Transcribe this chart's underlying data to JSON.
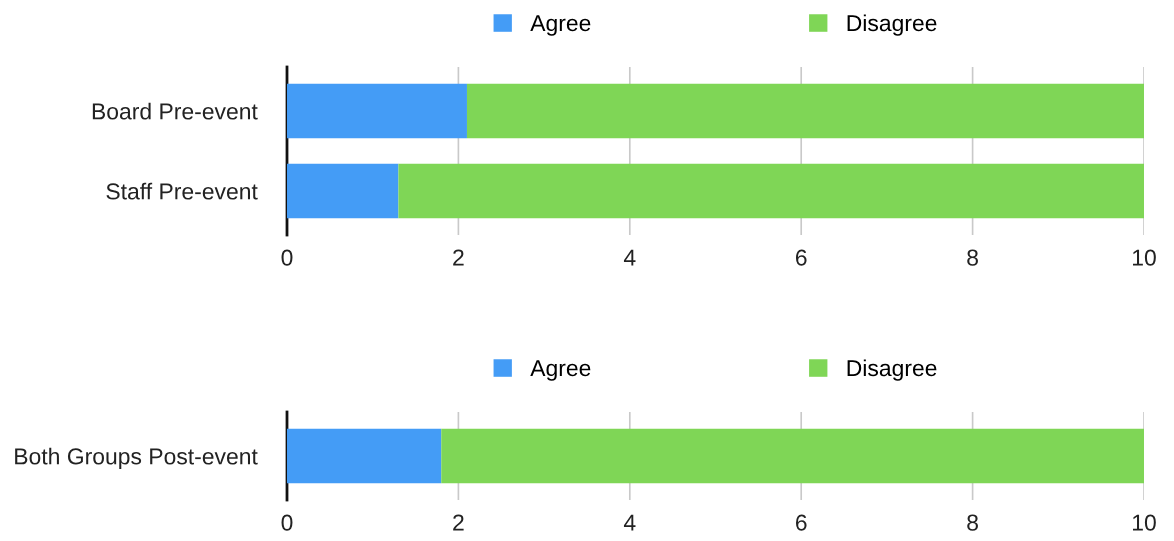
{
  "chart_data": [
    {
      "type": "bar",
      "orientation": "horizontal",
      "stacked": true,
      "categories": [
        "Board Pre-event",
        "Staff Pre-event"
      ],
      "series": [
        {
          "name": "Agree",
          "color": "#449cf6",
          "values": [
            2.1,
            1.3
          ]
        },
        {
          "name": "Disagree",
          "color": "#7fd656",
          "values": [
            7.9,
            8.7
          ]
        }
      ],
      "xlim": [
        0,
        10
      ],
      "xticks": [
        0,
        2,
        4,
        6,
        8,
        10
      ],
      "grid": "x",
      "legend": "top"
    },
    {
      "type": "bar",
      "orientation": "horizontal",
      "stacked": true,
      "categories": [
        "Both Groups Post-event"
      ],
      "series": [
        {
          "name": "Agree",
          "color": "#449cf6",
          "values": [
            1.8
          ]
        },
        {
          "name": "Disagree",
          "color": "#7fd656",
          "values": [
            8.2
          ]
        }
      ],
      "xlim": [
        0,
        10
      ],
      "xticks": [
        0,
        2,
        4,
        6,
        8,
        10
      ],
      "grid": "x",
      "legend": "top"
    }
  ]
}
